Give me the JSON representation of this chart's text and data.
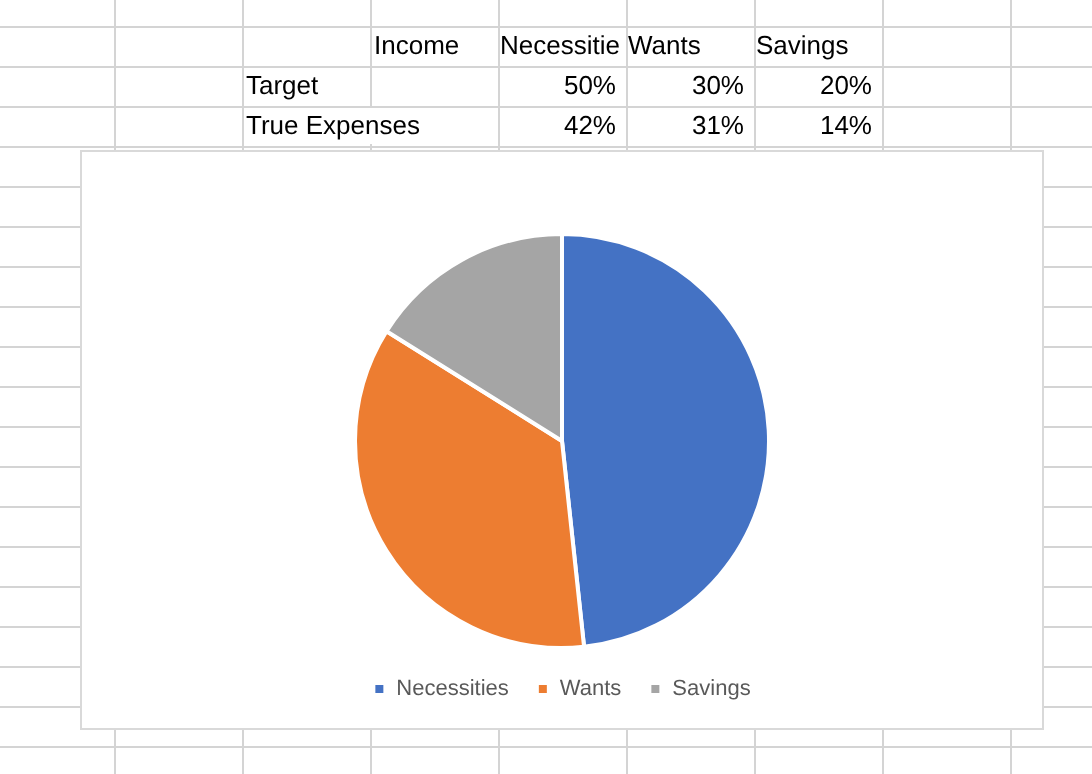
{
  "chart_data": {
    "type": "pie",
    "categories": [
      "Necessities",
      "Wants",
      "Savings"
    ],
    "values": [
      48.3,
      35.6,
      16.1
    ],
    "colors": [
      "#4472c4",
      "#ed7d31",
      "#a5a5a5"
    ],
    "legend": "bottom",
    "annotations": [
      "Income",
      "Necessitie",
      "Wants",
      "Savings",
      "Target",
      "50%",
      "30%",
      "20%",
      "True Expenses",
      "42%",
      "31%",
      "14%"
    ]
  }
}
